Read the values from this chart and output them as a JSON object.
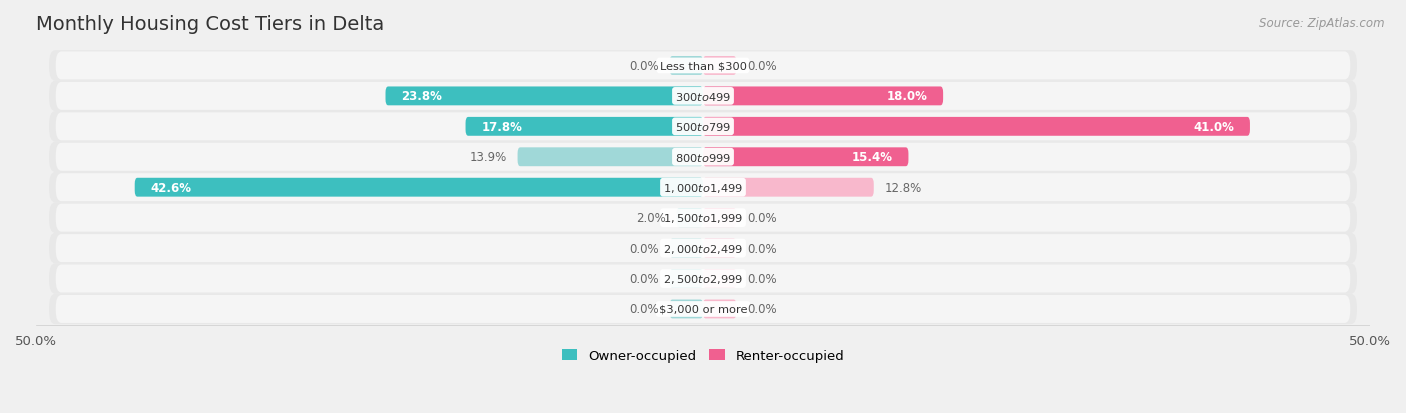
{
  "title": "Monthly Housing Cost Tiers in Delta",
  "source": "Source: ZipAtlas.com",
  "categories": [
    "Less than $300",
    "$300 to $499",
    "$500 to $799",
    "$800 to $999",
    "$1,000 to $1,499",
    "$1,500 to $1,999",
    "$2,000 to $2,499",
    "$2,500 to $2,999",
    "$3,000 or more"
  ],
  "owner_values": [
    0.0,
    23.8,
    17.8,
    13.9,
    42.6,
    2.0,
    0.0,
    0.0,
    0.0
  ],
  "renter_values": [
    0.0,
    18.0,
    41.0,
    15.4,
    12.8,
    0.0,
    0.0,
    0.0,
    0.0
  ],
  "owner_color_strong": "#3dbfbf",
  "owner_color_light": "#a0d8d8",
  "renter_color_strong": "#f06090",
  "renter_color_light": "#f8b8cc",
  "background_color": "#f0f0f0",
  "row_bg_color": "#e8e8e8",
  "row_inner_color": "#f5f5f5",
  "axis_limit": 50.0,
  "title_fontsize": 14,
  "bar_height": 0.62,
  "stub_value": 2.5,
  "value_threshold": 15.0
}
